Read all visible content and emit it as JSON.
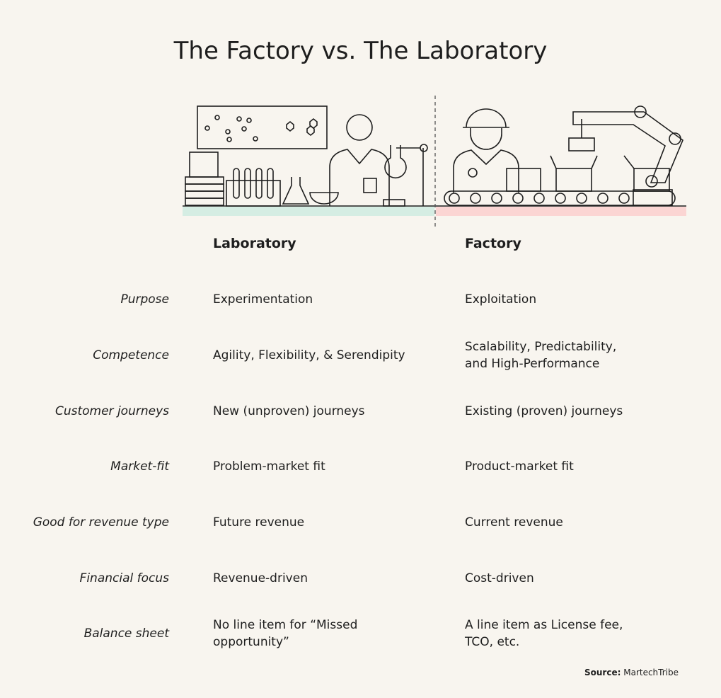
{
  "header": {
    "title": "The Factory vs. The Laboratory"
  },
  "columns": {
    "laboratory": "Laboratory",
    "factory": "Factory"
  },
  "rows": [
    {
      "label": "Purpose",
      "laboratory": "Experimentation",
      "factory": "Exploitation"
    },
    {
      "label": "Competence",
      "laboratory": "Agility, Flexibility, & Serendipity",
      "factory": "Scalability, Predictability, and High-Performance"
    },
    {
      "label": "Customer journeys",
      "laboratory": "New (unproven) journeys",
      "factory": "Existing (proven) journeys"
    },
    {
      "label": "Market-fit",
      "laboratory": "Problem-market fit",
      "factory": "Product-market fit"
    },
    {
      "label": "Good for revenue type",
      "laboratory": "Future revenue",
      "factory": "Current revenue"
    },
    {
      "label": "Financial focus",
      "laboratory": "Revenue-driven",
      "factory": "Cost-driven"
    },
    {
      "label": "Balance sheet",
      "laboratory": "No line item for “Missed opportunity”",
      "factory": "A line item as License fee, TCO, etc."
    }
  ],
  "source": {
    "label": "Source:",
    "name": "MartechTribe"
  }
}
